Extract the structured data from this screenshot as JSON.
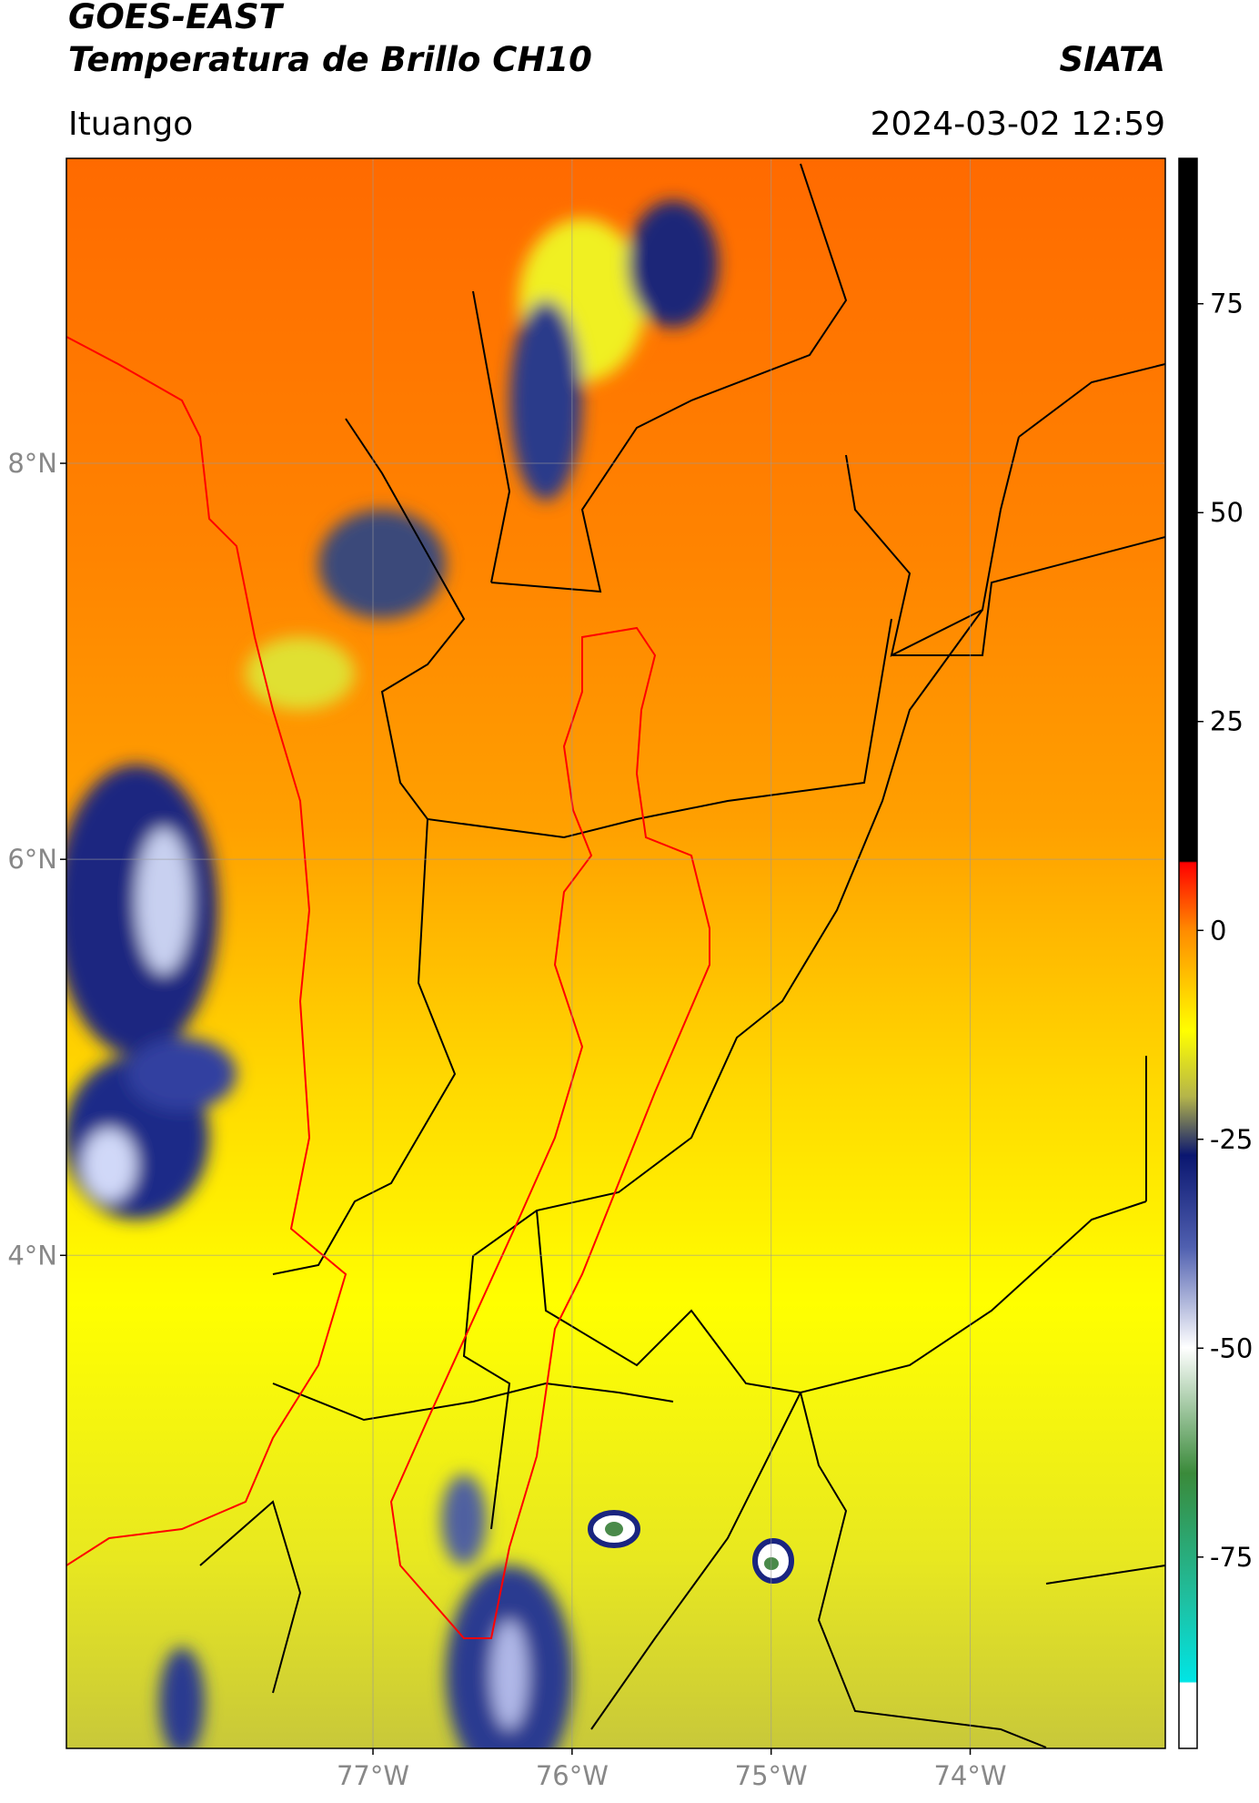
{
  "header": {
    "title": "GOES-EAST",
    "subtitle": "Temperatura de Brillo CH10",
    "credit": "SIATA",
    "location": "Ituango",
    "timestamp": "2024-03-02 12:59"
  },
  "map": {
    "latlim": [
      1.51,
      9.54
    ],
    "lonlim": [
      -78.54,
      -73.02
    ],
    "latticks": [
      {
        "value": 8,
        "label": "8°N"
      },
      {
        "value": 6,
        "label": "6°N"
      },
      {
        "value": 4,
        "label": "4°N"
      }
    ],
    "lonticks": [
      {
        "value": -77,
        "label": "77°W"
      },
      {
        "value": -76,
        "label": "76°W"
      },
      {
        "value": -75,
        "label": "75°W"
      },
      {
        "value": -74,
        "label": "74°W"
      }
    ],
    "grid": true
  },
  "colorbar": {
    "lim": [
      -97.9,
      92.4
    ],
    "ticks": [
      75,
      50,
      25,
      0,
      -25,
      -50,
      -75
    ]
  }
}
